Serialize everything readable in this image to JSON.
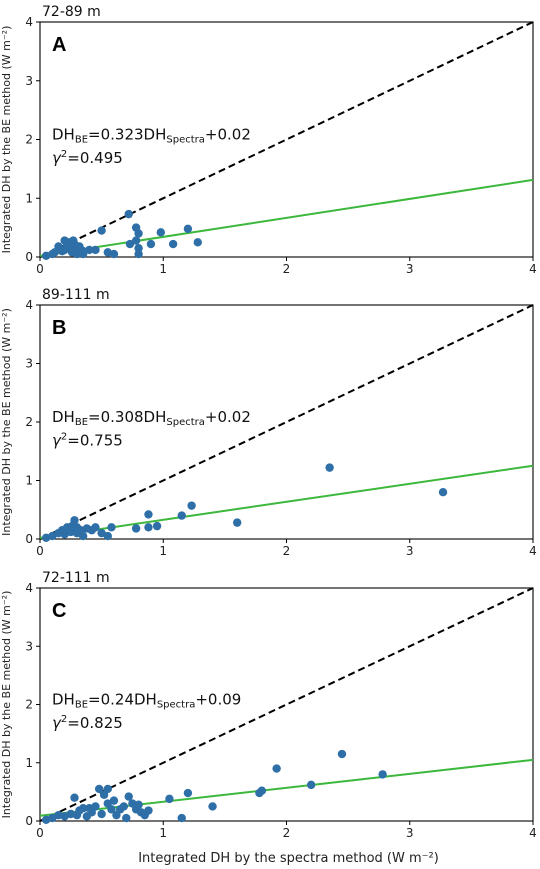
{
  "figure": {
    "shared_xlabel": "Integrated DH by the spectra method (W m⁻²)",
    "colors": {
      "points": "#2e6fa8",
      "fit": "#3cb83c",
      "identity": "#000000"
    }
  },
  "chart_data": [
    {
      "type": "scatter",
      "panel": "A",
      "range_label": "72-89 m",
      "ylabel": "Integrated DH by the BE method (W m⁻²)",
      "xlim": [
        0,
        4
      ],
      "ylim": [
        0,
        4
      ],
      "xticks": [
        "0",
        "1",
        "2",
        "3",
        "4"
      ],
      "yticks": [
        "0",
        "1",
        "2",
        "3",
        "4"
      ],
      "equation": {
        "lhs": "DH",
        "lhs_sub": "BE",
        "mid": "=0.323DH",
        "mid_sub": "Spectra",
        "tail": "+0.02"
      },
      "r2": {
        "symbol": "γ",
        "sup": "2",
        "value": "=0.495"
      },
      "fit": {
        "slope": 0.323,
        "intercept": 0.02
      },
      "points": [
        [
          0.05,
          0.02
        ],
        [
          0.1,
          0.05
        ],
        [
          0.12,
          0.08
        ],
        [
          0.15,
          0.18
        ],
        [
          0.18,
          0.1
        ],
        [
          0.2,
          0.12
        ],
        [
          0.2,
          0.28
        ],
        [
          0.22,
          0.2
        ],
        [
          0.24,
          0.25
        ],
        [
          0.25,
          0.15
        ],
        [
          0.26,
          0.08
        ],
        [
          0.27,
          0.28
        ],
        [
          0.28,
          0.22
        ],
        [
          0.3,
          0.05
        ],
        [
          0.3,
          0.13
        ],
        [
          0.32,
          0.18
        ],
        [
          0.35,
          0.1
        ],
        [
          0.35,
          0.05
        ],
        [
          0.4,
          0.12
        ],
        [
          0.45,
          0.12
        ],
        [
          0.5,
          0.45
        ],
        [
          0.55,
          0.08
        ],
        [
          0.6,
          0.05
        ],
        [
          0.72,
          0.73
        ],
        [
          0.73,
          0.22
        ],
        [
          0.78,
          0.5
        ],
        [
          0.78,
          0.28
        ],
        [
          0.8,
          0.4
        ],
        [
          0.8,
          0.15
        ],
        [
          0.8,
          0.05
        ],
        [
          0.9,
          0.22
        ],
        [
          0.98,
          0.42
        ],
        [
          1.08,
          0.22
        ],
        [
          1.2,
          0.48
        ],
        [
          1.28,
          0.25
        ]
      ]
    },
    {
      "type": "scatter",
      "panel": "B",
      "range_label": "89-111 m",
      "ylabel": "Integrated DH by the BE method (W m⁻²)",
      "xlim": [
        0,
        4
      ],
      "ylim": [
        0,
        4
      ],
      "xticks": [
        "0",
        "1",
        "2",
        "3",
        "4"
      ],
      "yticks": [
        "0",
        "1",
        "2",
        "3",
        "4"
      ],
      "equation": {
        "lhs": "DH",
        "lhs_sub": "BE",
        "mid": "=0.308DH",
        "mid_sub": "Spectra",
        "tail": "+0.02"
      },
      "r2": {
        "symbol": "γ",
        "sup": "2",
        "value": "=0.755"
      },
      "fit": {
        "slope": 0.308,
        "intercept": 0.02
      },
      "points": [
        [
          0.05,
          0.02
        ],
        [
          0.1,
          0.05
        ],
        [
          0.15,
          0.1
        ],
        [
          0.18,
          0.15
        ],
        [
          0.2,
          0.08
        ],
        [
          0.22,
          0.2
        ],
        [
          0.25,
          0.12
        ],
        [
          0.26,
          0.22
        ],
        [
          0.28,
          0.32
        ],
        [
          0.3,
          0.1
        ],
        [
          0.3,
          0.2
        ],
        [
          0.33,
          0.15
        ],
        [
          0.35,
          0.05
        ],
        [
          0.38,
          0.18
        ],
        [
          0.42,
          0.15
        ],
        [
          0.45,
          0.2
        ],
        [
          0.5,
          0.1
        ],
        [
          0.55,
          0.05
        ],
        [
          0.58,
          0.2
        ],
        [
          0.78,
          0.18
        ],
        [
          0.88,
          0.42
        ],
        [
          0.88,
          0.2
        ],
        [
          0.95,
          0.22
        ],
        [
          1.15,
          0.4
        ],
        [
          1.23,
          0.57
        ],
        [
          1.6,
          0.28
        ],
        [
          2.35,
          1.22
        ],
        [
          3.27,
          0.8
        ]
      ]
    },
    {
      "type": "scatter",
      "panel": "C",
      "range_label": "72-111 m",
      "ylabel": "Integrated DH by the BE method (W m⁻²)",
      "xlim": [
        0,
        4
      ],
      "ylim": [
        0,
        4
      ],
      "xticks": [
        "0",
        "1",
        "2",
        "3",
        "4"
      ],
      "yticks": [
        "0",
        "1",
        "2",
        "3",
        "4"
      ],
      "equation": {
        "lhs": "DH",
        "lhs_sub": "BE",
        "mid": "=0.24DH",
        "mid_sub": "Spectra",
        "tail": "+0.09"
      },
      "r2": {
        "symbol": "γ",
        "sup": "2",
        "value": "=0.825"
      },
      "fit": {
        "slope": 0.24,
        "intercept": 0.09
      },
      "points": [
        [
          0.05,
          0.02
        ],
        [
          0.1,
          0.05
        ],
        [
          0.15,
          0.1
        ],
        [
          0.2,
          0.08
        ],
        [
          0.25,
          0.12
        ],
        [
          0.28,
          0.4
        ],
        [
          0.3,
          0.1
        ],
        [
          0.32,
          0.18
        ],
        [
          0.35,
          0.22
        ],
        [
          0.38,
          0.08
        ],
        [
          0.4,
          0.22
        ],
        [
          0.42,
          0.15
        ],
        [
          0.45,
          0.25
        ],
        [
          0.48,
          0.55
        ],
        [
          0.5,
          0.12
        ],
        [
          0.52,
          0.45
        ],
        [
          0.55,
          0.55
        ],
        [
          0.55,
          0.3
        ],
        [
          0.58,
          0.2
        ],
        [
          0.6,
          0.35
        ],
        [
          0.62,
          0.1
        ],
        [
          0.65,
          0.2
        ],
        [
          0.68,
          0.25
        ],
        [
          0.7,
          0.05
        ],
        [
          0.72,
          0.42
        ],
        [
          0.75,
          0.3
        ],
        [
          0.78,
          0.2
        ],
        [
          0.8,
          0.28
        ],
        [
          0.82,
          0.15
        ],
        [
          0.85,
          0.1
        ],
        [
          0.88,
          0.18
        ],
        [
          1.05,
          0.38
        ],
        [
          1.15,
          0.05
        ],
        [
          1.2,
          0.48
        ],
        [
          1.4,
          0.25
        ],
        [
          1.78,
          0.48
        ],
        [
          1.8,
          0.52
        ],
        [
          1.92,
          0.9
        ],
        [
          2.2,
          0.62
        ],
        [
          2.45,
          1.15
        ],
        [
          2.78,
          0.8
        ]
      ]
    }
  ]
}
